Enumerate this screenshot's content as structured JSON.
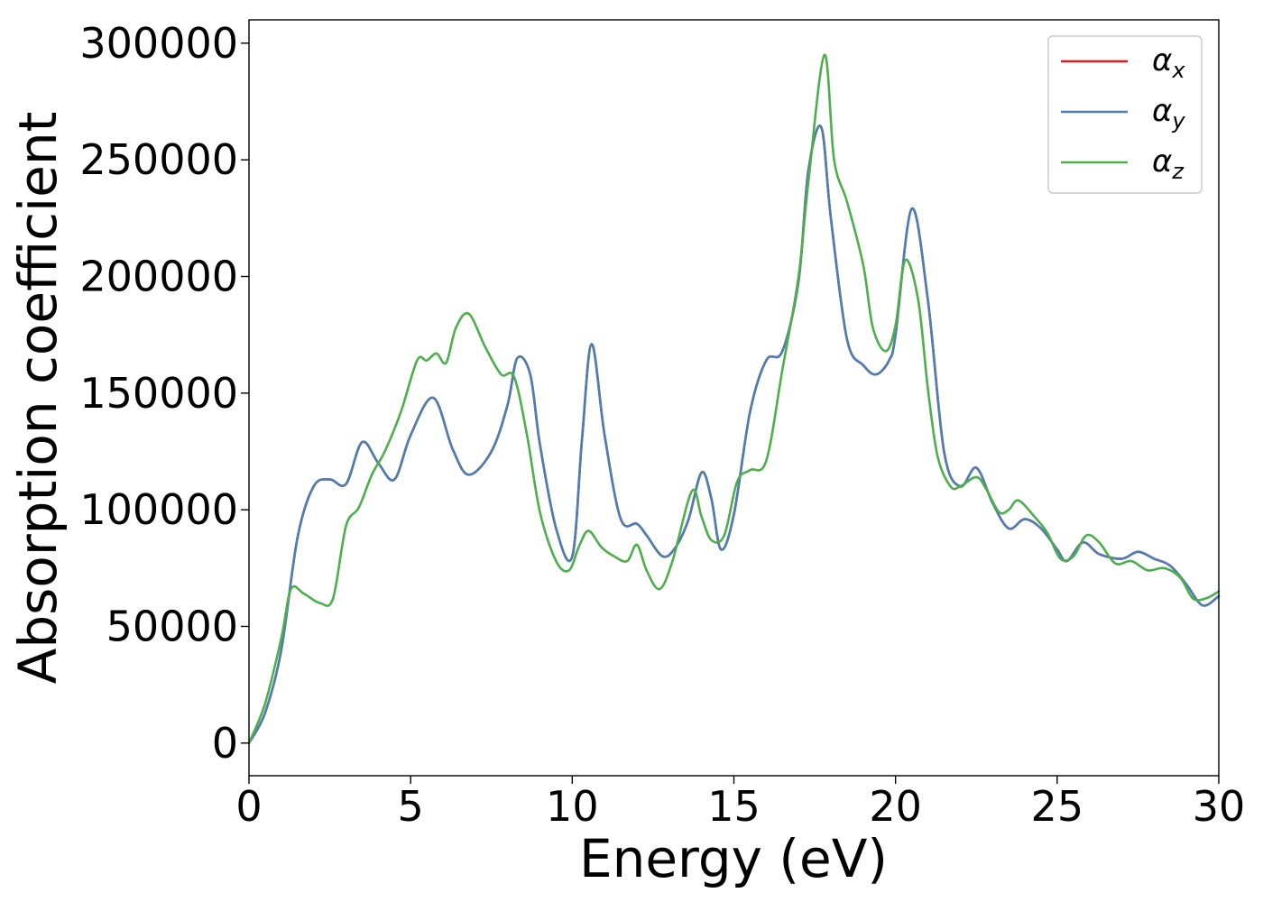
{
  "chart_data": {
    "type": "line",
    "xlabel": "Energy (eV)",
    "ylabel": "Absorption coefficient",
    "xlim": [
      0,
      30
    ],
    "ylim": [
      -14000,
      310000
    ],
    "xticks": [
      0,
      5,
      10,
      15,
      20,
      25,
      30
    ],
    "yticks": [
      0,
      50000,
      100000,
      150000,
      200000,
      250000,
      300000
    ],
    "grid": false,
    "legend_position": "top-right",
    "series": [
      {
        "name": "αx",
        "symbol": "α",
        "subscript": "x",
        "color": "#e41a1c",
        "x": [
          0,
          0.5,
          1,
          1.5,
          2,
          2.5,
          3,
          3.5,
          4,
          4.5,
          5,
          5.7,
          6.3,
          6.8,
          7.5,
          8,
          8.3,
          8.7,
          9,
          9.5,
          10,
          10.3,
          10.6,
          11,
          11.5,
          12,
          12.3,
          12.8,
          13.2,
          13.6,
          14,
          14.3,
          14.6,
          15,
          15.5,
          16,
          16.5,
          17,
          17.3,
          17.7,
          18,
          18.5,
          19,
          19.4,
          19.8,
          20,
          20.5,
          21,
          21.5,
          22,
          22.5,
          23,
          23.5,
          24,
          24.5,
          25,
          25.3,
          25.8,
          26.3,
          27,
          27.5,
          28,
          28.5,
          29,
          29.5,
          30
        ],
        "values": [
          0,
          13000,
          40000,
          88000,
          110000,
          113000,
          111000,
          129000,
          120000,
          113000,
          132000,
          148000,
          126000,
          115000,
          125000,
          145000,
          165000,
          158000,
          128000,
          92000,
          80000,
          130000,
          171000,
          132000,
          96000,
          94000,
          89000,
          80000,
          84000,
          96000,
          116000,
          105000,
          83000,
          98000,
          142000,
          164000,
          168000,
          198000,
          245000,
          264000,
          225000,
          173000,
          162000,
          158000,
          164000,
          175000,
          229000,
          190000,
          125000,
          110000,
          118000,
          103000,
          92000,
          96000,
          92000,
          83000,
          78000,
          86000,
          81000,
          79000,
          82000,
          79000,
          76000,
          68000,
          59000,
          63000
        ]
      },
      {
        "name": "αy",
        "symbol": "α",
        "subscript": "y",
        "color": "#4a7fb5",
        "x": [
          0,
          0.5,
          1,
          1.5,
          2,
          2.5,
          3,
          3.5,
          4,
          4.5,
          5,
          5.7,
          6.3,
          6.8,
          7.5,
          8,
          8.3,
          8.7,
          9,
          9.5,
          10,
          10.3,
          10.6,
          11,
          11.5,
          12,
          12.3,
          12.8,
          13.2,
          13.6,
          14,
          14.3,
          14.6,
          15,
          15.5,
          16,
          16.5,
          17,
          17.3,
          17.7,
          18,
          18.5,
          19,
          19.4,
          19.8,
          20,
          20.5,
          21,
          21.5,
          22,
          22.5,
          23,
          23.5,
          24,
          24.5,
          25,
          25.3,
          25.8,
          26.3,
          27,
          27.5,
          28,
          28.5,
          29,
          29.5,
          30
        ],
        "values": [
          0,
          13000,
          40000,
          88000,
          110000,
          113000,
          111000,
          129000,
          120000,
          113000,
          132000,
          148000,
          126000,
          115000,
          125000,
          145000,
          165000,
          158000,
          128000,
          92000,
          80000,
          130000,
          171000,
          132000,
          96000,
          94000,
          89000,
          80000,
          84000,
          96000,
          116000,
          105000,
          83000,
          98000,
          142000,
          164000,
          168000,
          198000,
          245000,
          264000,
          225000,
          173000,
          162000,
          158000,
          164000,
          175000,
          229000,
          190000,
          125000,
          110000,
          118000,
          103000,
          92000,
          96000,
          92000,
          83000,
          78000,
          86000,
          81000,
          79000,
          82000,
          79000,
          76000,
          68000,
          59000,
          63000
        ]
      },
      {
        "name": "αz",
        "symbol": "α",
        "subscript": "z",
        "color": "#4daf4a",
        "x": [
          0,
          0.5,
          1,
          1.3,
          1.7,
          2.2,
          2.6,
          3,
          3.4,
          3.8,
          4.2,
          4.7,
          5.2,
          5.5,
          5.8,
          6.1,
          6.4,
          6.8,
          7.3,
          7.8,
          8.2,
          8.6,
          9,
          9.5,
          9.9,
          10.2,
          10.5,
          10.9,
          11.3,
          11.7,
          12,
          12.3,
          12.7,
          13.1,
          13.7,
          14,
          14.3,
          14.7,
          15.1,
          15.5,
          16,
          16.5,
          17,
          17.3,
          17.8,
          18.1,
          18.5,
          19,
          19.3,
          19.7,
          20,
          20.3,
          20.7,
          21,
          21.3,
          21.7,
          22,
          22.5,
          22.8,
          23.2,
          23.5,
          23.8,
          24.3,
          24.7,
          25.1,
          25.5,
          25.9,
          26.3,
          26.8,
          27.3,
          27.8,
          28.3,
          28.8,
          29.2,
          29.6,
          30
        ],
        "values": [
          0,
          17000,
          45000,
          66000,
          64000,
          60000,
          62000,
          93000,
          101000,
          115000,
          125000,
          142000,
          164000,
          164000,
          167000,
          163000,
          178000,
          184000,
          170000,
          158000,
          157000,
          132000,
          99000,
          78000,
          74000,
          84000,
          91000,
          84000,
          80000,
          78000,
          85000,
          74000,
          66000,
          78000,
          108000,
          97000,
          87000,
          89000,
          112000,
          117000,
          121000,
          160000,
          200000,
          240000,
          295000,
          250000,
          232000,
          205000,
          178000,
          168000,
          179000,
          207000,
          190000,
          152000,
          123000,
          110000,
          110000,
          114000,
          109000,
          99000,
          100000,
          104000,
          97000,
          90000,
          79000,
          80000,
          89000,
          86000,
          77000,
          78000,
          74000,
          75000,
          71000,
          62000,
          62000,
          65000
        ]
      }
    ]
  }
}
